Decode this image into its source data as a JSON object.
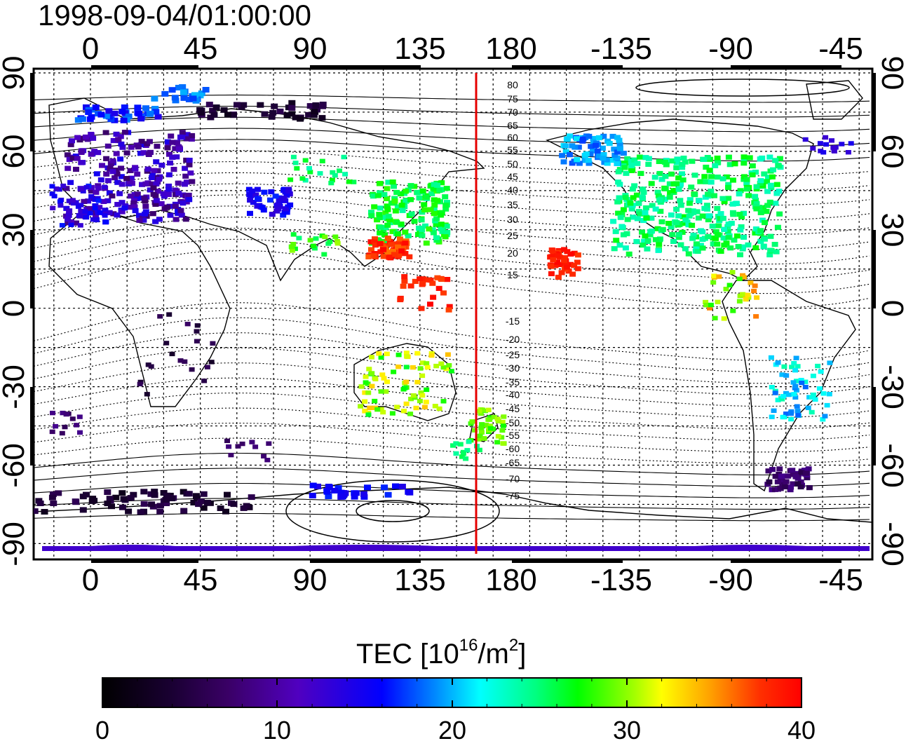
{
  "map": {
    "timestamp": "1998-09-04/01:00:00",
    "lon_ticks": [
      "0",
      "45",
      "90",
      "135",
      "180",
      "-135",
      "-90",
      "-45"
    ],
    "lat_ticks": [
      "90",
      "60",
      "30",
      "0",
      "-30",
      "-60",
      "-90"
    ],
    "contour_labels_north": [
      "80",
      "75",
      "70",
      "65",
      "60",
      "55",
      "50",
      "45",
      "40",
      "35",
      "30",
      "25",
      "20",
      "15"
    ],
    "contour_labels_south": [
      "-15",
      "-20",
      "-25",
      "-30",
      "-35",
      "-40",
      "-45",
      "-50",
      "-55",
      "-60",
      "-65",
      "-70",
      "-75"
    ],
    "red_line_color": "#e60000"
  },
  "colorbar": {
    "label_main": "TEC  [10",
    "label_sup1": "16",
    "label_mid": "/m",
    "label_sup2": "2",
    "label_end": "]",
    "ticks": [
      "0",
      "10",
      "20",
      "30",
      "40"
    ],
    "colors": [
      "#000000",
      "#3a0066",
      "#6a00c8",
      "#0000ff",
      "#0090ff",
      "#00ffff",
      "#00ff80",
      "#00ff00",
      "#a0ff00",
      "#ffff00",
      "#ffa000",
      "#ff3000",
      "#ff0000"
    ]
  }
}
